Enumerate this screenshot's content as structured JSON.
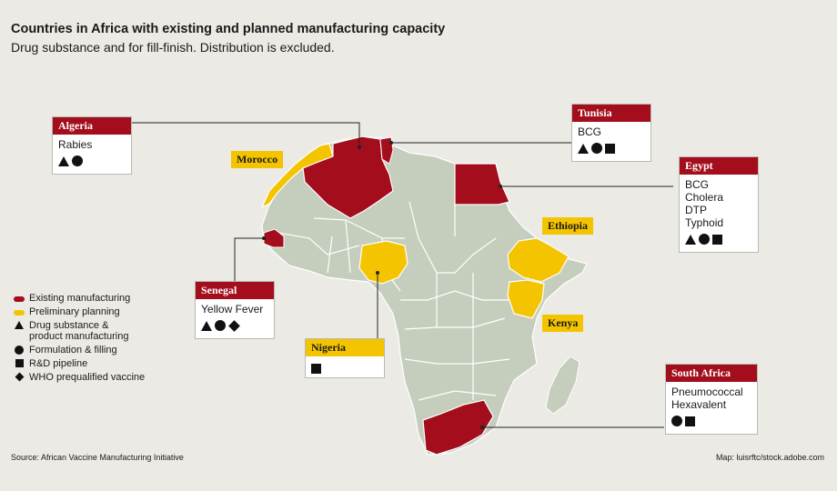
{
  "title": "Countries in Africa with existing and planned manufacturing capacity",
  "subtitle": "Drug substance and for fill-finish. Distribution is excluded.",
  "colors": {
    "existing": "#a30d1c",
    "planning": "#f5c400",
    "land": "#c5cdbd",
    "border": "#ffffff"
  },
  "countries": {
    "algeria": {
      "name": "Algeria",
      "status": "existing",
      "items": [
        "Rabies"
      ],
      "symbols": [
        "triangle-icon",
        "circle-icon"
      ]
    },
    "tunisia": {
      "name": "Tunisia",
      "status": "existing",
      "items": [
        "BCG"
      ],
      "symbols": [
        "triangle-icon",
        "circle-icon",
        "square-icon"
      ]
    },
    "egypt": {
      "name": "Egypt",
      "status": "existing",
      "items": [
        "BCG",
        "Cholera",
        "DTP",
        "Typhoid"
      ],
      "symbols": [
        "triangle-icon",
        "circle-icon",
        "square-icon"
      ]
    },
    "senegal": {
      "name": "Senegal",
      "status": "existing",
      "items": [
        "Yellow Fever"
      ],
      "symbols": [
        "triangle-icon",
        "circle-icon",
        "diamond-icon"
      ]
    },
    "nigeria": {
      "name": "Nigeria",
      "status": "planning",
      "items": [],
      "symbols": [
        "square-icon"
      ]
    },
    "south_africa": {
      "name": "South Africa",
      "status": "existing",
      "items": [
        "Pneumococcal",
        "Hexavalent"
      ],
      "symbols": [
        "circle-icon",
        "square-icon"
      ]
    },
    "morocco": {
      "name": "Morocco",
      "status": "planning"
    },
    "ethiopia": {
      "name": "Ethiopia",
      "status": "planning"
    },
    "kenya": {
      "name": "Kenya",
      "status": "planning"
    }
  },
  "legend": {
    "existing": "Existing manufacturing",
    "planning": "Preliminary planning",
    "drug_substance_1": "Drug substance &",
    "drug_substance_2": "product manufacturing",
    "formulation": "Formulation & filling",
    "rnd": "R&D pipeline",
    "who": "WHO prequalified vaccine"
  },
  "source": "Source: African Vaccine Manufacturing Initiative",
  "credit": "Map: luisrftc/stock.adobe.com"
}
